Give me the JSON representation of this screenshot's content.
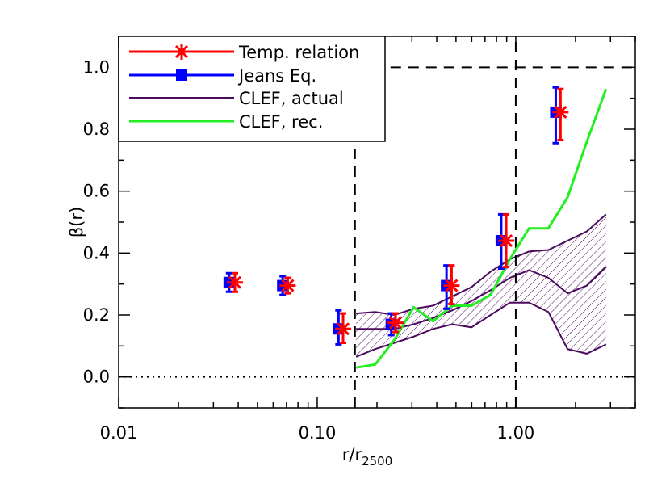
{
  "chart_data": {
    "type": "scatter",
    "xlabel": {
      "main": "r/r",
      "sub": "2500"
    },
    "ylabel": "β(r)",
    "x_scale": "log",
    "xlim": [
      0.01,
      4.0
    ],
    "ylim": [
      -0.1,
      1.1
    ],
    "x_ticks": [
      {
        "value": 0.01,
        "label": "0.01"
      },
      {
        "value": 0.1,
        "label": "0.10"
      },
      {
        "value": 1.0,
        "label": "1.00"
      }
    ],
    "y_ticks": [
      {
        "value": 0.0,
        "label": "0.0"
      },
      {
        "value": 0.2,
        "label": "0.2"
      },
      {
        "value": 0.4,
        "label": "0.4"
      },
      {
        "value": 0.6,
        "label": "0.6"
      },
      {
        "value": 0.8,
        "label": "0.8"
      },
      {
        "value": 1.0,
        "label": "1.0"
      }
    ],
    "reference_lines": [
      {
        "kind": "horizontal",
        "y": 1.0,
        "style": "dashed",
        "x_from": 0.155
      },
      {
        "kind": "horizontal",
        "y": 0.0,
        "style": "dotted"
      },
      {
        "kind": "vertical",
        "x": 0.155,
        "style": "dashed",
        "y_to": 0.77
      },
      {
        "kind": "vertical",
        "x": 1.0,
        "style": "dashed"
      }
    ],
    "legend": {
      "placement": "top-left",
      "entries": [
        {
          "label": "Temp. relation",
          "color": "#ff0000",
          "marker": "asterisk"
        },
        {
          "label": "Jeans Eq.",
          "color": "#0000ff",
          "marker": "square"
        },
        {
          "label": "CLEF, actual",
          "color": "#4b0a5e",
          "marker": "line"
        },
        {
          "label": "CLEF, rec.",
          "color": "#22ee22",
          "marker": "line"
        }
      ]
    },
    "series": [
      {
        "name": "Temp. relation",
        "color": "#ff0000",
        "points": [
          {
            "x": 0.0385,
            "y": 0.305,
            "lo": 0.275,
            "hi": 0.335
          },
          {
            "x": 0.071,
            "y": 0.295,
            "lo": 0.27,
            "hi": 0.32
          },
          {
            "x": 0.135,
            "y": 0.155,
            "lo": 0.11,
            "hi": 0.205
          },
          {
            "x": 0.248,
            "y": 0.175,
            "lo": 0.145,
            "hi": 0.205
          },
          {
            "x": 0.475,
            "y": 0.295,
            "lo": 0.235,
            "hi": 0.36
          },
          {
            "x": 0.895,
            "y": 0.44,
            "lo": 0.355,
            "hi": 0.525
          },
          {
            "x": 1.68,
            "y": 0.855,
            "lo": 0.765,
            "hi": 0.93
          }
        ]
      },
      {
        "name": "Jeans Eq.",
        "color": "#0000ff",
        "points": [
          {
            "x": 0.036,
            "y": 0.305,
            "lo": 0.275,
            "hi": 0.335
          },
          {
            "x": 0.067,
            "y": 0.295,
            "lo": 0.265,
            "hi": 0.325
          },
          {
            "x": 0.128,
            "y": 0.155,
            "lo": 0.105,
            "hi": 0.215
          },
          {
            "x": 0.236,
            "y": 0.17,
            "lo": 0.135,
            "hi": 0.205
          },
          {
            "x": 0.448,
            "y": 0.295,
            "lo": 0.22,
            "hi": 0.36
          },
          {
            "x": 0.845,
            "y": 0.44,
            "lo": 0.35,
            "hi": 0.525
          },
          {
            "x": 1.59,
            "y": 0.855,
            "lo": 0.755,
            "hi": 0.935
          }
        ]
      },
      {
        "name": "CLEF, actual",
        "color": "#4b0a5e",
        "x": [
          0.157,
          0.196,
          0.245,
          0.306,
          0.383,
          0.478,
          0.598,
          0.747,
          0.934,
          1.167,
          1.459,
          1.823,
          2.28,
          2.85
        ],
        "upper": [
          0.205,
          0.21,
          0.2,
          0.22,
          0.23,
          0.26,
          0.29,
          0.34,
          0.38,
          0.405,
          0.41,
          0.44,
          0.47,
          0.525
        ],
        "mean": [
          0.155,
          0.155,
          0.155,
          0.17,
          0.19,
          0.215,
          0.245,
          0.28,
          0.32,
          0.345,
          0.32,
          0.27,
          0.295,
          0.355
        ],
        "lower": [
          0.065,
          0.09,
          0.11,
          0.13,
          0.155,
          0.17,
          0.16,
          0.2,
          0.24,
          0.24,
          0.21,
          0.09,
          0.075,
          0.105
        ]
      },
      {
        "name": "CLEF, rec.",
        "color": "#22ee22",
        "x": [
          0.157,
          0.196,
          0.245,
          0.306,
          0.383,
          0.478,
          0.598,
          0.747,
          0.934,
          1.167,
          1.459,
          1.823,
          2.28,
          2.85
        ],
        "y": [
          0.03,
          0.04,
          0.12,
          0.225,
          0.18,
          0.23,
          0.23,
          0.265,
          0.38,
          0.48,
          0.48,
          0.58,
          0.76,
          0.93
        ]
      }
    ]
  }
}
